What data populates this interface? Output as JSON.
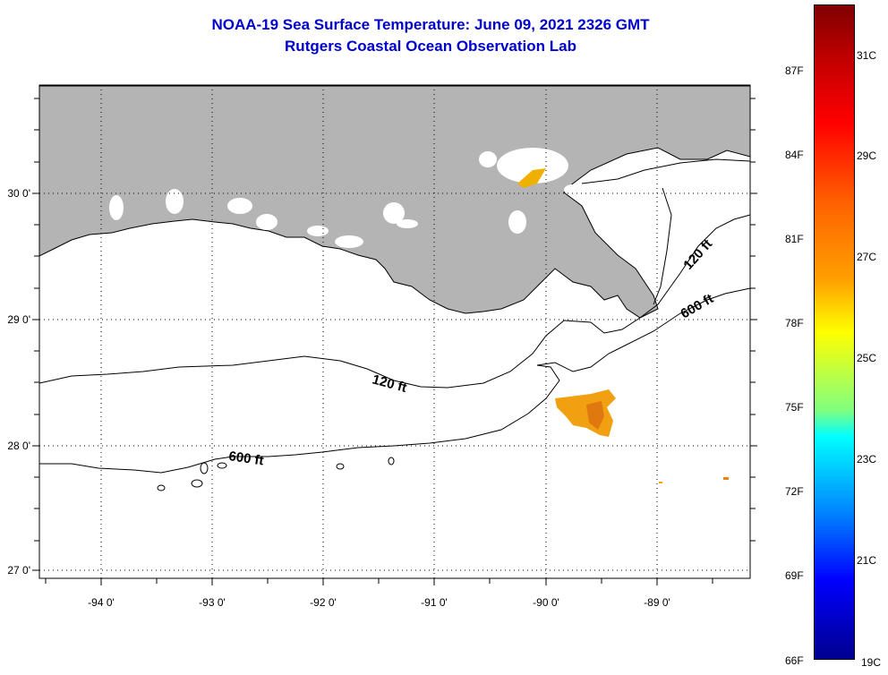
{
  "title": {
    "line1": "NOAA-19 Sea Surface Temperature:  June 09, 2021 2326 GMT",
    "line2": "Rutgers Coastal Ocean Observation Lab"
  },
  "map": {
    "lat_labels": [
      "30 0'",
      "29 0'",
      "28 0'",
      "27 0'"
    ],
    "lon_labels": [
      "-94 0'",
      "-93 0'",
      "-92 0'",
      "-91 0'",
      "-90 0'",
      "-89 0'"
    ],
    "contour_labels": [
      "120 ft",
      "600 ft",
      "120 ft",
      "600 ft"
    ],
    "land_color": "#b4b4b4",
    "ocean_color": "#ffffff"
  },
  "colorbar": {
    "fahrenheit_labels": [
      "87F",
      "84F",
      "81F",
      "78F",
      "75F",
      "72F",
      "69F",
      "66F"
    ],
    "celsius_labels": [
      "31C",
      "29C",
      "27C",
      "25C",
      "23C",
      "21C",
      "19C"
    ]
  }
}
